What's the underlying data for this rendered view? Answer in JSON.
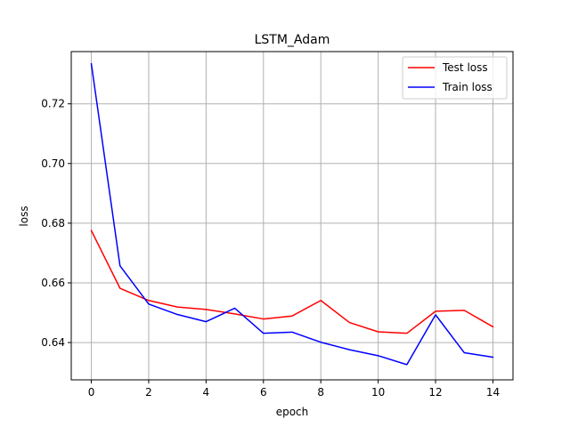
{
  "chart_data": {
    "type": "line",
    "title": "LSTM_Adam",
    "xlabel": "epoch",
    "ylabel": "loss",
    "xlim": [
      -0.7,
      14.7
    ],
    "ylim": [
      0.6275,
      0.7375
    ],
    "x_ticks": [
      0,
      2,
      4,
      6,
      8,
      10,
      12,
      14
    ],
    "x_tick_labels": [
      "0",
      "2",
      "4",
      "6",
      "8",
      "10",
      "12",
      "14"
    ],
    "y_ticks": [
      0.64,
      0.66,
      0.68,
      0.7,
      0.72
    ],
    "y_tick_labels": [
      "0.64",
      "0.66",
      "0.68",
      "0.70",
      "0.72"
    ],
    "grid": true,
    "legend_position": "top-right",
    "x": [
      0,
      1,
      2,
      3,
      4,
      5,
      6,
      7,
      8,
      9,
      10,
      11,
      12,
      13,
      14
    ],
    "series": [
      {
        "name": "Test loss",
        "color": "#ff0000",
        "values": [
          0.6775,
          0.6582,
          0.6541,
          0.6519,
          0.6511,
          0.6496,
          0.6479,
          0.6489,
          0.6541,
          0.6467,
          0.6436,
          0.6431,
          0.6505,
          0.6508,
          0.6453
        ]
      },
      {
        "name": "Train loss",
        "color": "#0000ff",
        "values": [
          0.7334,
          0.6657,
          0.6529,
          0.6494,
          0.647,
          0.6515,
          0.6431,
          0.6435,
          0.6401,
          0.6376,
          0.6356,
          0.6326,
          0.6493,
          0.6366,
          0.6351
        ]
      }
    ]
  }
}
